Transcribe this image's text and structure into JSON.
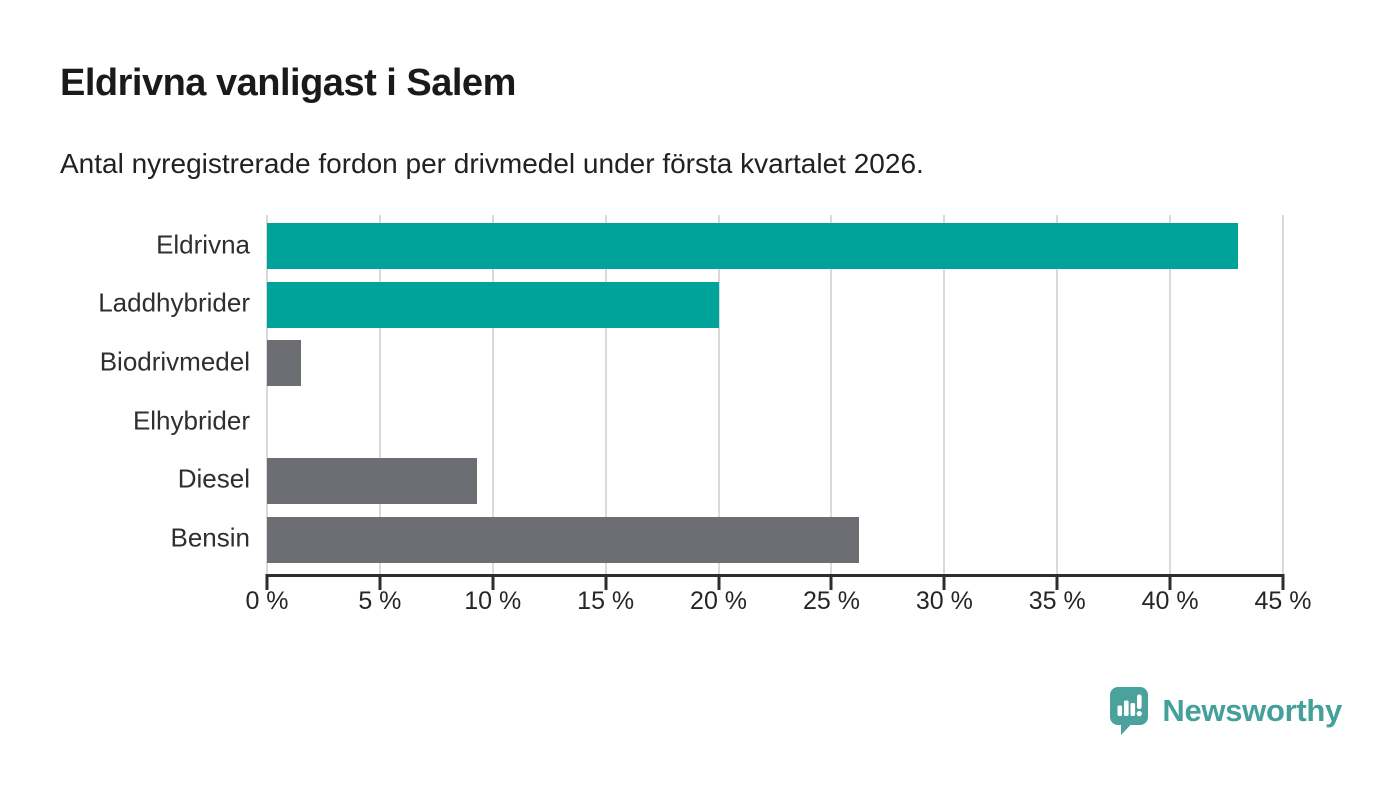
{
  "header": {
    "title": "Eldrivna vanligast i Salem",
    "subtitle": "Antal nyregistrerade fordon per drivmedel under första kvartalet 2026."
  },
  "chart_data": {
    "type": "bar",
    "orientation": "horizontal",
    "categories": [
      "Eldrivna",
      "Laddhybrider",
      "Biodrivmedel",
      "Elhybrider",
      "Diesel",
      "Bensin"
    ],
    "values": [
      43,
      20,
      1.5,
      0,
      9.3,
      26.2
    ],
    "unit": "%",
    "xlim": [
      0,
      45
    ],
    "x_ticks": [
      0,
      5,
      10,
      15,
      20,
      25,
      30,
      35,
      40,
      45
    ],
    "x_tick_labels": [
      "0 %",
      "5 %",
      "10 %",
      "15 %",
      "20 %",
      "25 %",
      "30 %",
      "35 %",
      "40 %",
      "45 %"
    ],
    "grid": "vertical-on",
    "legend": "none",
    "title": "Eldrivna vanligast i Salem",
    "xlabel": "",
    "ylabel": "",
    "bar_colors": [
      "#00a39a",
      "#00a39a",
      "#6d6d74",
      "#6d6d74",
      "#6d6d74",
      "#6d6d74"
    ],
    "colors": {
      "highlight": "#00a39a",
      "default": "#6d6d74",
      "gridline": "#dadada",
      "axis": "#2d2d2d"
    }
  },
  "footer": {
    "brand": "Newsworthy",
    "brand_color": "#45a09b",
    "logo_icon": "speech-bubble-bar-chart-icon"
  }
}
